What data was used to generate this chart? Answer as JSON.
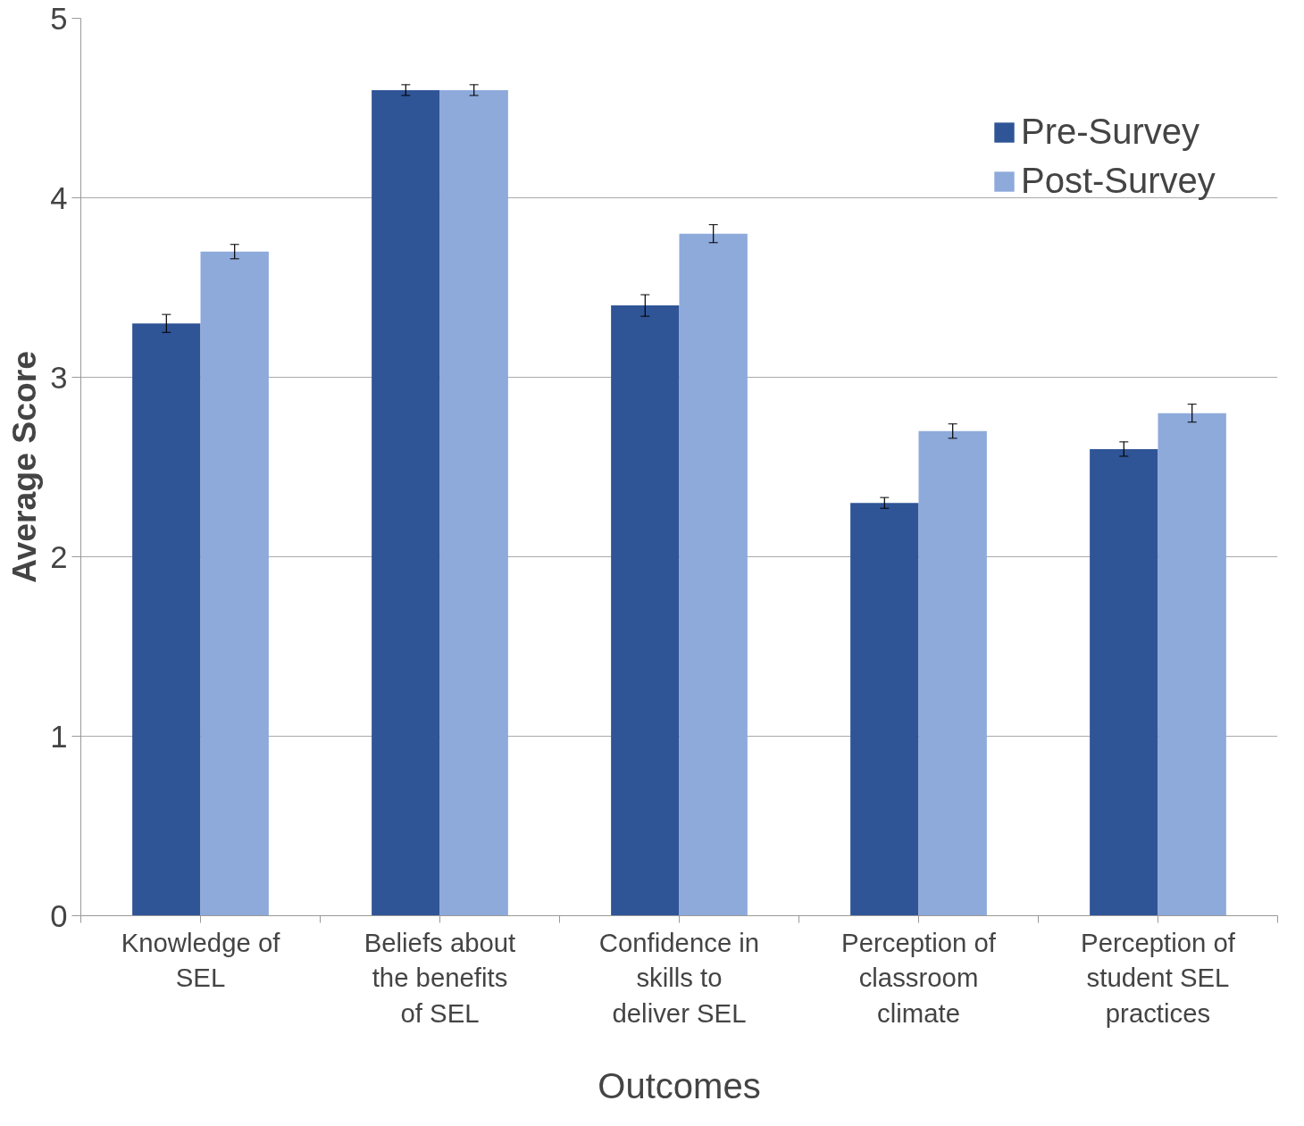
{
  "chart_data": {
    "type": "bar",
    "xlabel": "Outcomes",
    "ylabel": "Average Score",
    "categories": [
      "Knowledge of SEL",
      "Beliefs about the benefits of SEL",
      "Confidence in skills to deliver SEL",
      "Perception of classroom climate",
      "Perception of student SEL practices"
    ],
    "series": [
      {
        "name": "Pre-Survey",
        "color": "#2f5597",
        "values": [
          3.3,
          4.6,
          3.4,
          2.3,
          2.6
        ],
        "errors": [
          0.05,
          0.03,
          0.06,
          0.03,
          0.04
        ]
      },
      {
        "name": "Post-Survey",
        "color": "#8eaadb",
        "values": [
          3.7,
          4.6,
          3.8,
          2.7,
          2.8
        ],
        "errors": [
          0.04,
          0.03,
          0.05,
          0.04,
          0.05
        ]
      }
    ],
    "ylim": [
      0,
      5
    ],
    "yticks": [
      0,
      1,
      2,
      3,
      4,
      5
    ],
    "grid": "y",
    "legend": "top right"
  }
}
